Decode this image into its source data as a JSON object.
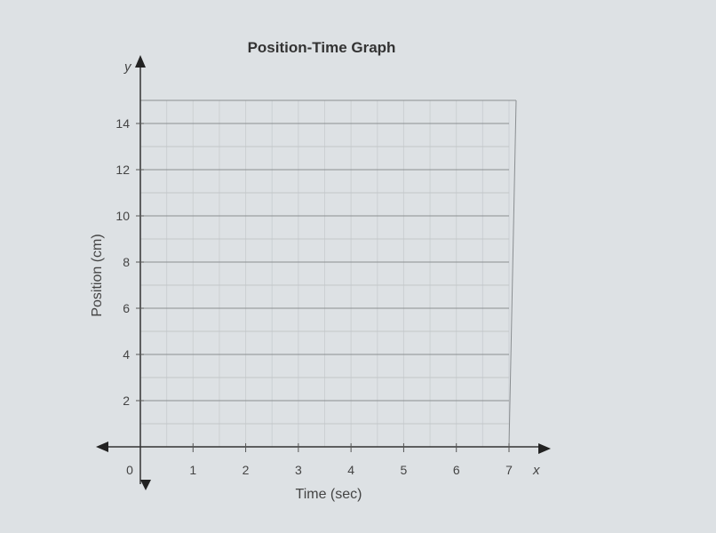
{
  "chart_data": {
    "type": "line",
    "title": "Position-Time Graph",
    "xlabel": "Time (sec)",
    "ylabel": "Position (cm)",
    "x_axis_letter": "x",
    "y_axis_letter": "y",
    "xlim": [
      0,
      7
    ],
    "ylim": [
      0,
      15
    ],
    "x_ticks": [
      "0",
      "1",
      "2",
      "3",
      "4",
      "5",
      "6",
      "7"
    ],
    "y_ticks": [
      "2",
      "4",
      "6",
      "8",
      "10",
      "12",
      "14"
    ],
    "grid": true,
    "series": []
  }
}
